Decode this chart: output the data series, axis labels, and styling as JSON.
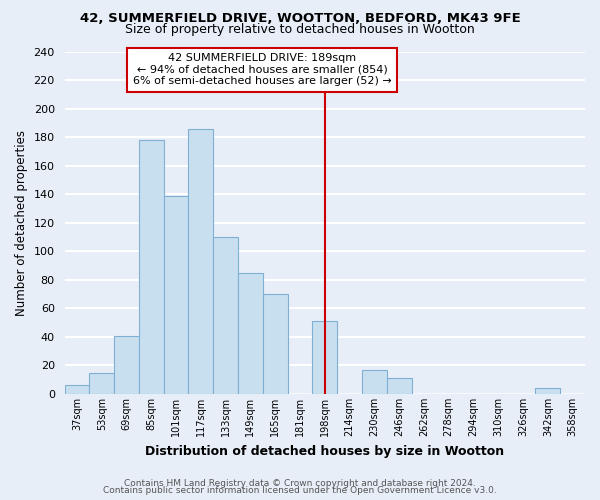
{
  "title": "42, SUMMERFIELD DRIVE, WOOTTON, BEDFORD, MK43 9FE",
  "subtitle": "Size of property relative to detached houses in Wootton",
  "xlabel": "Distribution of detached houses by size in Wootton",
  "ylabel": "Number of detached properties",
  "bin_labels": [
    "37sqm",
    "53sqm",
    "69sqm",
    "85sqm",
    "101sqm",
    "117sqm",
    "133sqm",
    "149sqm",
    "165sqm",
    "181sqm",
    "198sqm",
    "214sqm",
    "230sqm",
    "246sqm",
    "262sqm",
    "278sqm",
    "294sqm",
    "310sqm",
    "326sqm",
    "342sqm",
    "358sqm"
  ],
  "bar_heights": [
    6,
    15,
    41,
    178,
    139,
    186,
    110,
    85,
    70,
    0,
    51,
    0,
    17,
    11,
    0,
    0,
    0,
    0,
    0,
    4,
    0
  ],
  "bar_color": "#c8dff0",
  "bar_edge_color": "#7fb0d4",
  "vline_color": "#cc0000",
  "vline_x_label": "198sqm",
  "annotation_title": "42 SUMMERFIELD DRIVE: 189sqm",
  "annotation_line1": "← 94% of detached houses are smaller (854)",
  "annotation_line2": "6% of semi-detached houses are larger (52) →",
  "ylim": [
    0,
    240
  ],
  "yticks": [
    0,
    20,
    40,
    60,
    80,
    100,
    120,
    140,
    160,
    180,
    200,
    220,
    240
  ],
  "footer1": "Contains HM Land Registry data © Crown copyright and database right 2024.",
  "footer2": "Contains public sector information licensed under the Open Government Licence v3.0.",
  "bg_color": "#e8eef8",
  "plot_bg_color": "#e8eef8",
  "grid_color": "white"
}
